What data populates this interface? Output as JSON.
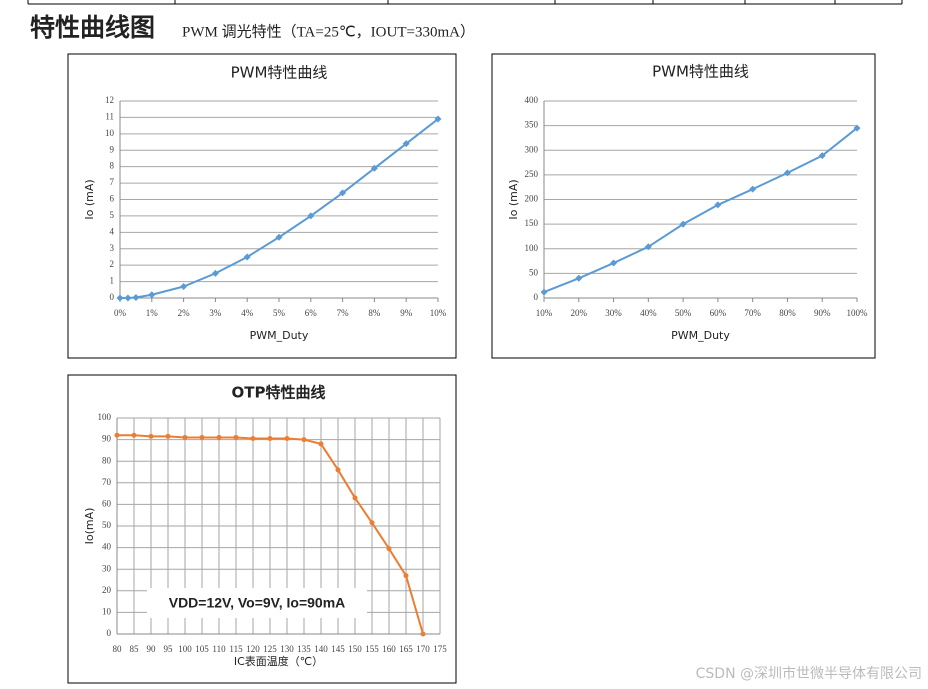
{
  "header": {
    "title": "特性曲线图",
    "subtitle": "PWM 调光特性（TA=25℃，IOUT=330mA）"
  },
  "watermark": "CSDN @深圳市世微半导体有限公司",
  "chart_data": [
    {
      "type": "line",
      "title": "PWM特性曲线",
      "xlabel": "PWM_Duty",
      "ylabel": "Io (mA)",
      "x": [
        0,
        0.25,
        0.5,
        1,
        2,
        3,
        4,
        5,
        6,
        7,
        8,
        9,
        10
      ],
      "series": [
        {
          "name": "Io",
          "color": "#5b9bd5",
          "values": [
            0,
            0,
            0.03,
            0.2,
            0.7,
            1.5,
            2.5,
            3.7,
            5,
            6.4,
            7.9,
            9.4,
            10.9
          ]
        }
      ],
      "xlim": [
        0,
        10
      ],
      "xticks": [
        {
          "value": 0,
          "label": "0%"
        },
        {
          "value": 1,
          "label": "1%"
        },
        {
          "value": 2,
          "label": "2%"
        },
        {
          "value": 3,
          "label": "3%"
        },
        {
          "value": 4,
          "label": "4%"
        },
        {
          "value": 5,
          "label": "5%"
        },
        {
          "value": 6,
          "label": "6%"
        },
        {
          "value": 7,
          "label": "7%"
        },
        {
          "value": 8,
          "label": "8%"
        },
        {
          "value": 9,
          "label": "9%"
        },
        {
          "value": 10,
          "label": "10%"
        }
      ],
      "ylim": [
        0,
        12
      ],
      "yticks": [
        0,
        1,
        2,
        3,
        4,
        5,
        6,
        7,
        8,
        9,
        10,
        11,
        12
      ],
      "grid": "y",
      "marker": "diamond"
    },
    {
      "type": "line",
      "title": "PWM特性曲线",
      "xlabel": "PWM_Duty",
      "ylabel": "Io (mA)",
      "x": [
        10,
        20,
        30,
        40,
        50,
        60,
        70,
        80,
        90,
        100
      ],
      "series": [
        {
          "name": "Io",
          "color": "#5b9bd5",
          "values": [
            12,
            40,
            71,
            104,
            150,
            189,
            221,
            254,
            289,
            345
          ]
        }
      ],
      "xlim": [
        10,
        100
      ],
      "xticks": [
        {
          "value": 10,
          "label": "10%"
        },
        {
          "value": 20,
          "label": "20%"
        },
        {
          "value": 30,
          "label": "30%"
        },
        {
          "value": 40,
          "label": "40%"
        },
        {
          "value": 50,
          "label": "50%"
        },
        {
          "value": 60,
          "label": "60%"
        },
        {
          "value": 70,
          "label": "70%"
        },
        {
          "value": 80,
          "label": "80%"
        },
        {
          "value": 90,
          "label": "90%"
        },
        {
          "value": 100,
          "label": "100%"
        }
      ],
      "ylim": [
        0,
        400
      ],
      "yticks": [
        0,
        50,
        100,
        150,
        200,
        250,
        300,
        350,
        400
      ],
      "grid": "y",
      "marker": "diamond"
    },
    {
      "type": "line",
      "title": "OTP特性曲线",
      "xlabel": "IC表面温度（℃）",
      "ylabel": "Io(mA)",
      "annotation": "VDD=12V, Vo=9V, Io=90mA",
      "x": [
        80,
        85,
        90,
        95,
        100,
        105,
        110,
        115,
        120,
        125,
        130,
        135,
        140,
        145,
        150,
        155,
        160,
        165,
        170
      ],
      "series": [
        {
          "name": "Io",
          "color": "#ed7d31",
          "values": [
            92,
            92,
            91.5,
            91.5,
            91,
            91,
            91,
            91,
            90.5,
            90.5,
            90.5,
            90,
            88,
            76,
            63,
            51.5,
            39.5,
            27,
            0
          ]
        }
      ],
      "xlim": [
        80,
        175
      ],
      "xticks": [
        80,
        85,
        90,
        95,
        100,
        105,
        110,
        115,
        120,
        125,
        130,
        135,
        140,
        145,
        150,
        155,
        160,
        165,
        170,
        175
      ],
      "ylim": [
        0,
        100
      ],
      "yticks": [
        0,
        10,
        20,
        30,
        40,
        50,
        60,
        70,
        80,
        90,
        100
      ],
      "grid": "both",
      "marker": "circle"
    }
  ]
}
